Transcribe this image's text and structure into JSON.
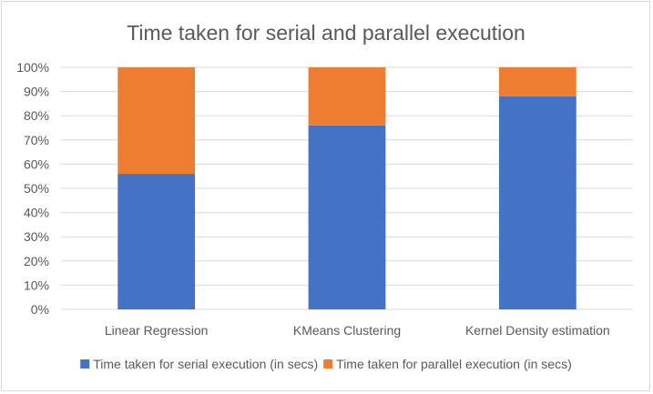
{
  "chart_data": {
    "type": "bar",
    "stacked": true,
    "percent_stacked": true,
    "title": "Time taken for serial and parallel execution",
    "categories": [
      "Linear Regression",
      "KMeans Clustering",
      "Kernel Density estimation"
    ],
    "series": [
      {
        "name": "Time taken for serial execution (in secs)",
        "values": [
          56,
          76,
          88
        ],
        "color": "#4472c4"
      },
      {
        "name": "Time taken for parallel execution (in secs)",
        "values": [
          44,
          24,
          12
        ],
        "color": "#ed7d31"
      }
    ],
    "yticks": [
      "0%",
      "10%",
      "20%",
      "30%",
      "40%",
      "50%",
      "60%",
      "70%",
      "80%",
      "90%",
      "100%"
    ],
    "ylim": [
      0,
      100
    ],
    "grid": true,
    "legend_position": "bottom"
  }
}
